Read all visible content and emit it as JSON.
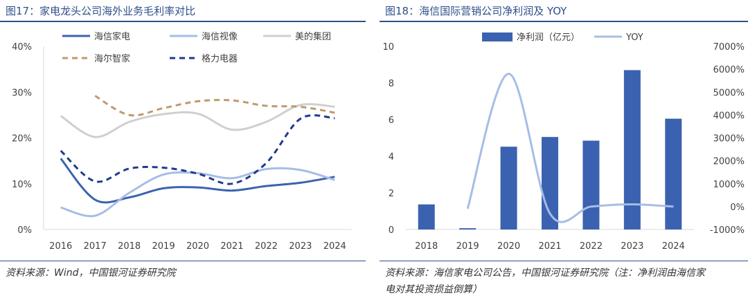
{
  "left_panel": {
    "title": "图17：家电龙头公司海外业务毛利率对比",
    "source": "资料来源：Wind，中国银河证券研究院"
  },
  "right_panel": {
    "title": "图18：海信国际营销公司净利润及 YOY",
    "source_line1": "资料来源：海信家电公司公告，中国银河证券研究院（注：净利润由海信家",
    "source_line2": "电对其投资损益倒算）"
  },
  "chart_data": [
    {
      "type": "line",
      "title": "家电龙头公司海外业务毛利率对比",
      "x": [
        "2016",
        "2017",
        "2018",
        "2019",
        "2020",
        "2021",
        "2022",
        "2023",
        "2024"
      ],
      "y_ticks": [
        "0%",
        "10%",
        "20%",
        "30%",
        "40%"
      ],
      "ylim": [
        0,
        40
      ],
      "series": [
        {
          "name": "海信家电",
          "values": [
            15.5,
            6.5,
            7,
            9,
            9.2,
            8.5,
            9.5,
            10.2,
            11.5
          ],
          "color": "#3a63b0",
          "style": "solid"
        },
        {
          "name": "海信视像",
          "values": [
            4.8,
            3,
            8,
            12,
            12.3,
            11.2,
            13.2,
            13,
            10.8
          ],
          "color": "#a6bde6",
          "style": "solid"
        },
        {
          "name": "美的集团",
          "values": [
            24.8,
            20.2,
            23.5,
            25.2,
            25.3,
            21.8,
            23.5,
            27.2,
            26.8
          ],
          "color": "#cfcfcf",
          "style": "solid"
        },
        {
          "name": "海尔智家",
          "values": [
            null,
            29.2,
            25,
            26.5,
            28,
            28.2,
            27,
            26.8,
            25.5
          ],
          "color": "#bf9a6a",
          "style": "dashed"
        },
        {
          "name": "格力电器",
          "values": [
            17.2,
            10.5,
            13.3,
            13.5,
            12.2,
            10,
            14.5,
            24.2,
            24.3
          ],
          "color": "#1f3a8a",
          "style": "dashed"
        }
      ]
    },
    {
      "type": "bar+line",
      "title": "海信国际营销公司净利润及 YOY",
      "x": [
        "2018",
        "2019",
        "2020",
        "2021",
        "2022",
        "2023",
        "2024"
      ],
      "left_axis": {
        "ticks": [
          "0",
          "2",
          "4",
          "6",
          "8",
          "10"
        ],
        "ylim": [
          0,
          10
        ]
      },
      "right_axis": {
        "ticks": [
          "-1000%",
          "0%",
          "1000%",
          "2000%",
          "3000%",
          "4000%",
          "5000%",
          "6000%",
          "7000%"
        ],
        "ylim": [
          -1000,
          7000
        ]
      },
      "series": [
        {
          "name": "净利润（亿元）",
          "type": "bar",
          "axis": "left",
          "values": [
            1.37,
            0.07,
            4.52,
            5.05,
            4.85,
            8.7,
            6.05
          ],
          "color": "#3b62b0"
        },
        {
          "name": "YOY",
          "type": "line",
          "axis": "right",
          "values": [
            null,
            -95,
            5800,
            -300,
            0,
            100,
            0
          ],
          "color": "#a6bde6"
        }
      ]
    }
  ]
}
